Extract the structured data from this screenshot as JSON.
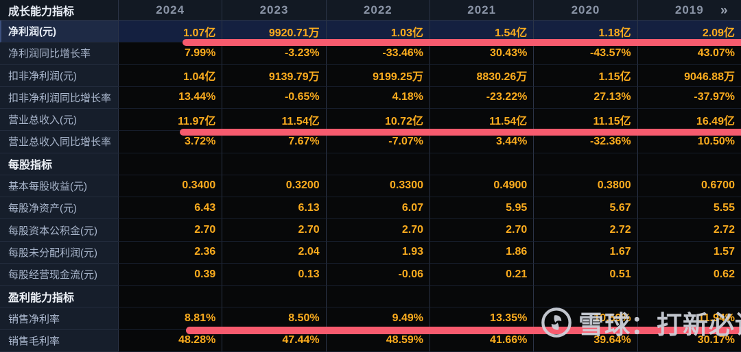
{
  "table": {
    "corner_label": "成长能力指标",
    "years": [
      "2024",
      "2023",
      "2022",
      "2021",
      "2020",
      "2019"
    ],
    "more_indicator": "»",
    "rows": [
      {
        "type": "data",
        "label": "净利润(元)",
        "highlight": true,
        "red_underline": true,
        "values": [
          "1.07亿",
          "9920.71万",
          "1.03亿",
          "1.54亿",
          "1.18亿",
          "2.09亿"
        ]
      },
      {
        "type": "data",
        "label": "净利润同比增长率",
        "values": [
          "7.99%",
          "-3.23%",
          "-33.46%",
          "30.43%",
          "-43.57%",
          "43.07%"
        ]
      },
      {
        "type": "data",
        "label": "扣非净利润(元)",
        "values": [
          "1.04亿",
          "9139.79万",
          "9199.25万",
          "8830.26万",
          "1.15亿",
          "9046.88万"
        ]
      },
      {
        "type": "data",
        "label": "扣非净利润同比增长率",
        "values": [
          "13.44%",
          "-0.65%",
          "4.18%",
          "-23.22%",
          "27.13%",
          "-37.97%"
        ]
      },
      {
        "type": "data",
        "label": "营业总收入(元)",
        "red_underline": true,
        "values": [
          "11.97亿",
          "11.54亿",
          "10.72亿",
          "11.54亿",
          "11.15亿",
          "16.49亿"
        ]
      },
      {
        "type": "data",
        "label": "营业总收入同比增长率",
        "values": [
          "3.72%",
          "7.67%",
          "-7.07%",
          "3.44%",
          "-32.36%",
          "10.50%"
        ]
      },
      {
        "type": "section",
        "label": "每股指标",
        "values": [
          "",
          "",
          "",
          "",
          "",
          ""
        ]
      },
      {
        "type": "data",
        "label": "基本每股收益(元)",
        "values": [
          "0.3400",
          "0.3200",
          "0.3300",
          "0.4900",
          "0.3800",
          "0.6700"
        ]
      },
      {
        "type": "data",
        "label": "每股净资产(元)",
        "values": [
          "6.43",
          "6.13",
          "6.07",
          "5.95",
          "5.67",
          "5.55"
        ]
      },
      {
        "type": "data",
        "label": "每股资本公积金(元)",
        "values": [
          "2.70",
          "2.70",
          "2.70",
          "2.70",
          "2.72",
          "2.72"
        ]
      },
      {
        "type": "data",
        "label": "每股未分配利润(元)",
        "values": [
          "2.36",
          "2.04",
          "1.93",
          "1.86",
          "1.67",
          "1.57"
        ]
      },
      {
        "type": "data",
        "label": "每股经营现金流(元)",
        "values": [
          "0.39",
          "0.13",
          "-0.06",
          "0.21",
          "0.51",
          "0.62"
        ]
      },
      {
        "type": "section",
        "label": "盈利能力指标",
        "values": [
          "",
          "",
          "",
          "",
          "",
          ""
        ]
      },
      {
        "type": "data",
        "label": "销售净利率",
        "red_underline": true,
        "values": [
          "8.81%",
          "8.50%",
          "9.49%",
          "13.35%",
          "10.59%",
          "11.94%"
        ]
      },
      {
        "type": "data",
        "label": "销售毛利率",
        "values": [
          "48.28%",
          "47.44%",
          "48.59%",
          "41.66%",
          "39.64%",
          "30.17%"
        ]
      }
    ]
  },
  "watermark": {
    "text": "雪球：打新必读",
    "logo": "xueqiu-snowball-logo"
  },
  "colors": {
    "value_orange": "#fbac1e",
    "marker_red": "#f75b6e",
    "highlight_row_bg": "#142040",
    "label_column_bg": "#161e2b",
    "header_bg": "#121923",
    "data_cell_bg": "#070809",
    "label_text": "#a9b6cc",
    "year_text": "#8a94a6",
    "section_text": "#eef2f8"
  }
}
